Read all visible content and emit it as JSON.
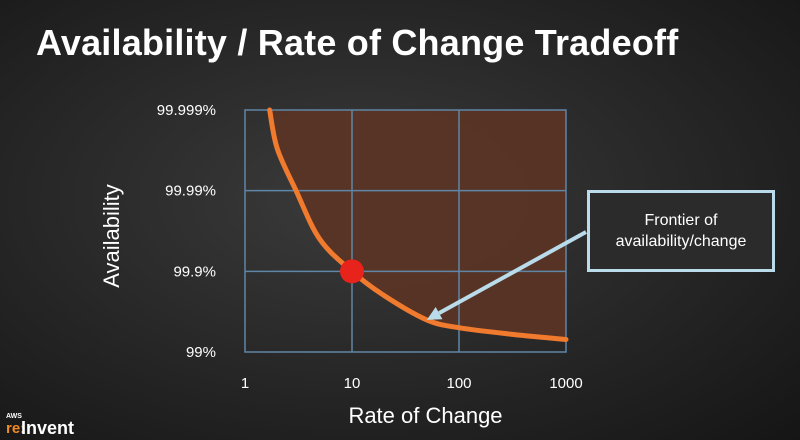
{
  "slide": {
    "title": "Availability / Rate of Change Tradeoff"
  },
  "chart_data": {
    "type": "line",
    "x_scale": "log",
    "y_scale": "categorical-log",
    "xlabel": "Rate of Change",
    "ylabel": "Availability",
    "x_ticks": [
      "1",
      "10",
      "100",
      "1000"
    ],
    "x_tick_values": [
      1,
      10,
      100,
      1000
    ],
    "y_ticks": [
      "99%",
      "99.9%",
      "99.99%",
      "99.999%"
    ],
    "xlim": [
      1,
      1000
    ],
    "ylim": [
      "99%",
      "99.999%"
    ],
    "grid": true,
    "series": [
      {
        "color": "#f07a2e",
        "points": [
          {
            "x": 1.7,
            "y": "99.999%"
          },
          {
            "x": 2.0,
            "y": "99.997%"
          },
          {
            "x": 3.0,
            "y": "99.99%"
          },
          {
            "x": 5.0,
            "y": "99.96%"
          },
          {
            "x": 10,
            "y": "99.9%"
          },
          {
            "x": 20,
            "y": "99.8%"
          },
          {
            "x": 50,
            "y": "99.6%"
          },
          {
            "x": 100,
            "y": "99.5%"
          },
          {
            "x": 300,
            "y": "99.4%"
          },
          {
            "x": 1000,
            "y": "99.3%"
          }
        ]
      }
    ],
    "highlight_point": {
      "x": 10,
      "y": "99.9%",
      "color": "#e8231b"
    },
    "fill_above_curve": "#5a3424",
    "annotation": {
      "lines": [
        "Frontier of",
        "availability/change"
      ],
      "arrow_to": {
        "x": 50,
        "y": "99.6%"
      },
      "border_color": "#b9dbea"
    },
    "grid_color": "#5f86a6"
  },
  "branding": {
    "logo_aws": "AWS",
    "logo_re": "re:",
    "logo_invent": "Invent"
  }
}
